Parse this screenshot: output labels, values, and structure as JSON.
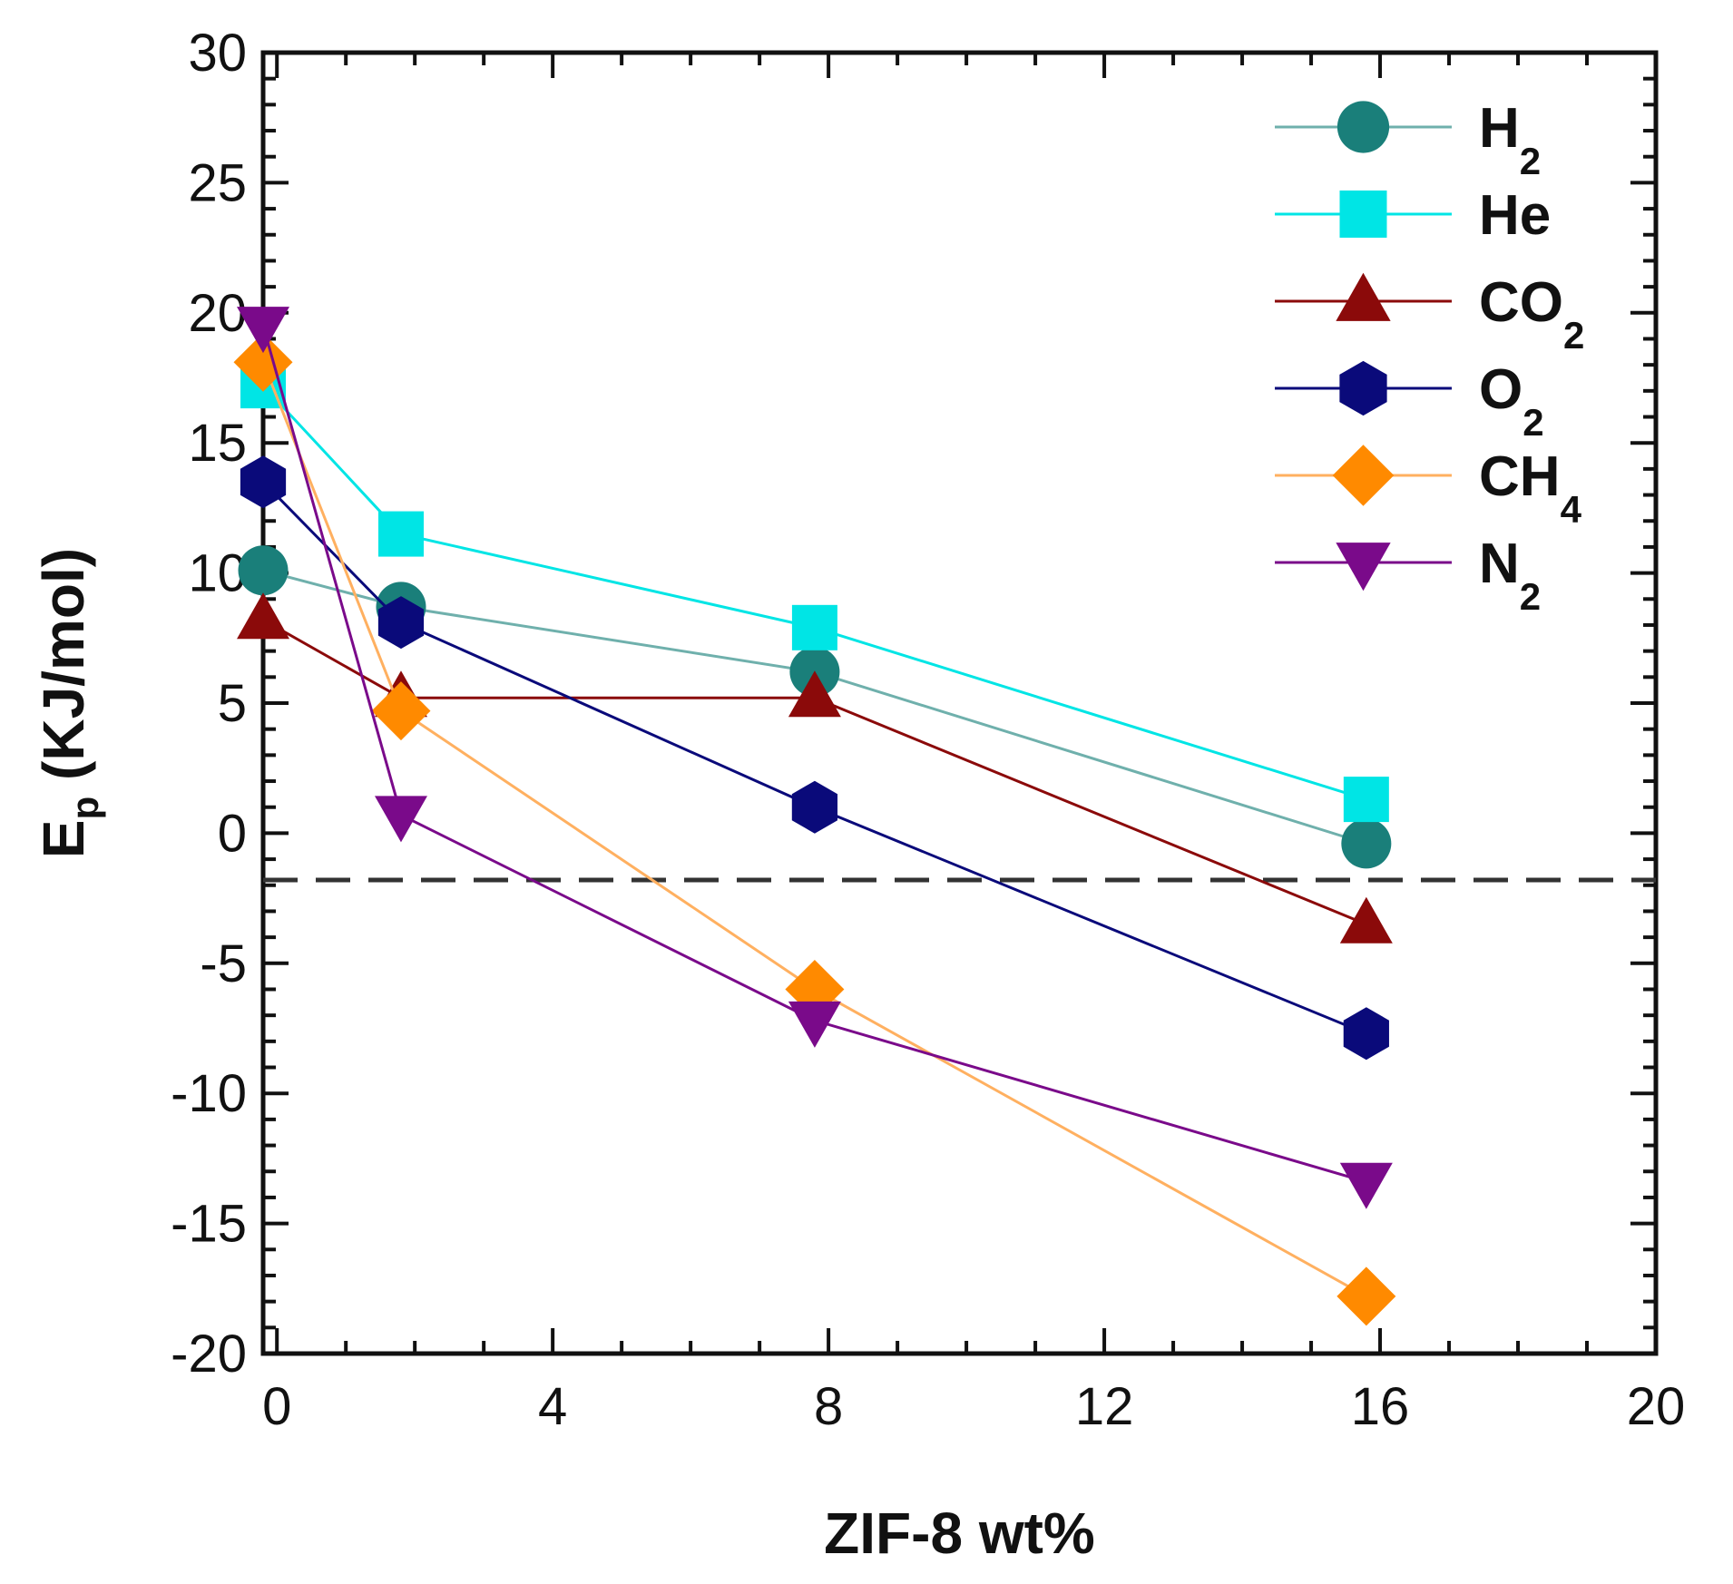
{
  "chart_data": {
    "type": "line",
    "title": "",
    "xlabel": "ZIF-8 wt%",
    "ylabel": {
      "main": "E",
      "sub": "p",
      "rest": " (KJ/mol)"
    },
    "xlim": [
      -0.2,
      20
    ],
    "ylim": [
      -20,
      30
    ],
    "x_ticks": [
      0,
      4,
      8,
      12,
      16,
      20
    ],
    "y_ticks": [
      30,
      25,
      20,
      15,
      10,
      5,
      0,
      -5,
      -10,
      -15,
      -20
    ],
    "x_minor_step": 1,
    "y_minor_step": 1,
    "x_tick_labels": [
      "0",
      "4",
      "8",
      "12",
      "16",
      "20"
    ],
    "y_tick_labels": [
      "30",
      "25",
      "20",
      "15",
      "10",
      "5",
      "0",
      "-5",
      "-10",
      "-15",
      "-20"
    ],
    "reference_line": {
      "y": -1.8,
      "style": "dashed",
      "color": "#333333"
    },
    "legend_position": "top-right",
    "x": [
      -0.2,
      1.8,
      7.8,
      15.8
    ],
    "series": [
      {
        "name": "H",
        "sub": "2",
        "marker": "circle",
        "color": "#1a7f7a",
        "line_color": "#6fb0ac",
        "values": [
          10.1,
          8.7,
          6.2,
          -0.4
        ]
      },
      {
        "name": "He",
        "sub": "",
        "marker": "square",
        "color": "#00e5e5",
        "line_color": "#00e5e5",
        "values": [
          17.2,
          11.5,
          7.9,
          1.3
        ]
      },
      {
        "name": "CO",
        "sub": "2",
        "marker": "triangle-up",
        "color": "#8b0a0a",
        "line_color": "#8b0a0a",
        "values": [
          8.2,
          5.2,
          5.2,
          -3.5
        ]
      },
      {
        "name": "O",
        "sub": "2",
        "marker": "hexagon",
        "color": "#0a0a7a",
        "line_color": "#0a0a7a",
        "values": [
          13.5,
          8.1,
          1.0,
          -7.7
        ]
      },
      {
        "name": "CH",
        "sub": "4",
        "marker": "diamond",
        "color": "#ff8a00",
        "line_color": "#ffb060",
        "values": [
          18.1,
          4.7,
          -6.0,
          -17.8
        ]
      },
      {
        "name": "N",
        "sub": "2",
        "marker": "triangle-down",
        "color": "#7a0a8a",
        "line_color": "#7a0a8a",
        "values": [
          19.5,
          0.7,
          -7.2,
          -13.4
        ]
      }
    ]
  }
}
